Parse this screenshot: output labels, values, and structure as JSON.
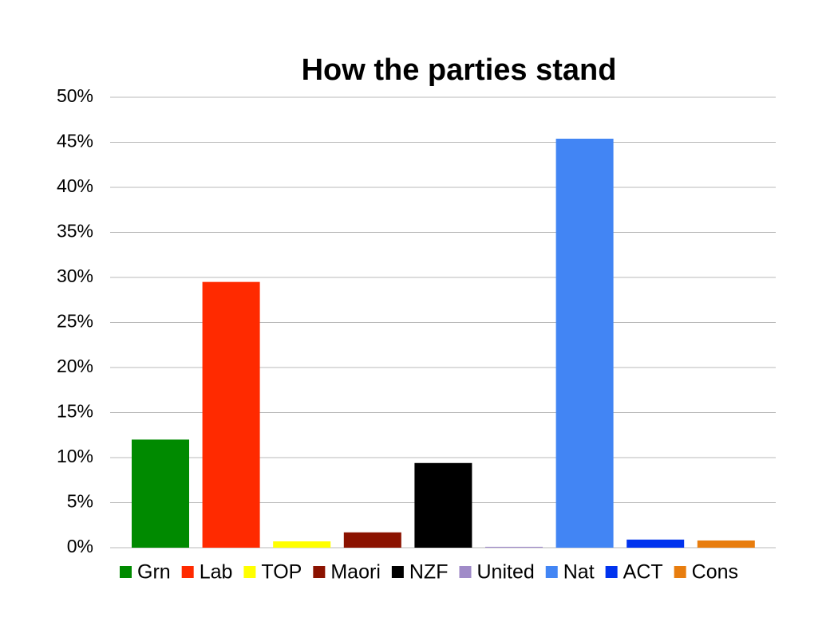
{
  "chart_data": {
    "type": "bar",
    "title": "How the parties stand",
    "categories": [
      "Grn",
      "Lab",
      "TOP",
      "Maori",
      "NZF",
      "United",
      "Nat",
      "ACT",
      "Cons"
    ],
    "values": [
      12,
      29.5,
      0.7,
      1.7,
      9.4,
      0.1,
      45.4,
      0.9,
      0.8
    ],
    "colors": [
      "#008a00",
      "#ff2a00",
      "#ffff00",
      "#8b1200",
      "#000000",
      "#a08bc8",
      "#4285f4",
      "#0033ee",
      "#e87d0e"
    ],
    "ylim": [
      0,
      50
    ],
    "yticks": [
      {
        "value": 0,
        "label": "0%"
      },
      {
        "value": 5,
        "label": "5%"
      },
      {
        "value": 10,
        "label": "10%"
      },
      {
        "value": 15,
        "label": "15%"
      },
      {
        "value": 20,
        "label": "20%"
      },
      {
        "value": 25,
        "label": "25%"
      },
      {
        "value": 30,
        "label": "30%"
      },
      {
        "value": 35,
        "label": "35%"
      },
      {
        "value": 40,
        "label": "40%"
      },
      {
        "value": 45,
        "label": "45%"
      },
      {
        "value": 50,
        "label": "50%"
      }
    ],
    "grid": true,
    "legend": "bottom"
  }
}
